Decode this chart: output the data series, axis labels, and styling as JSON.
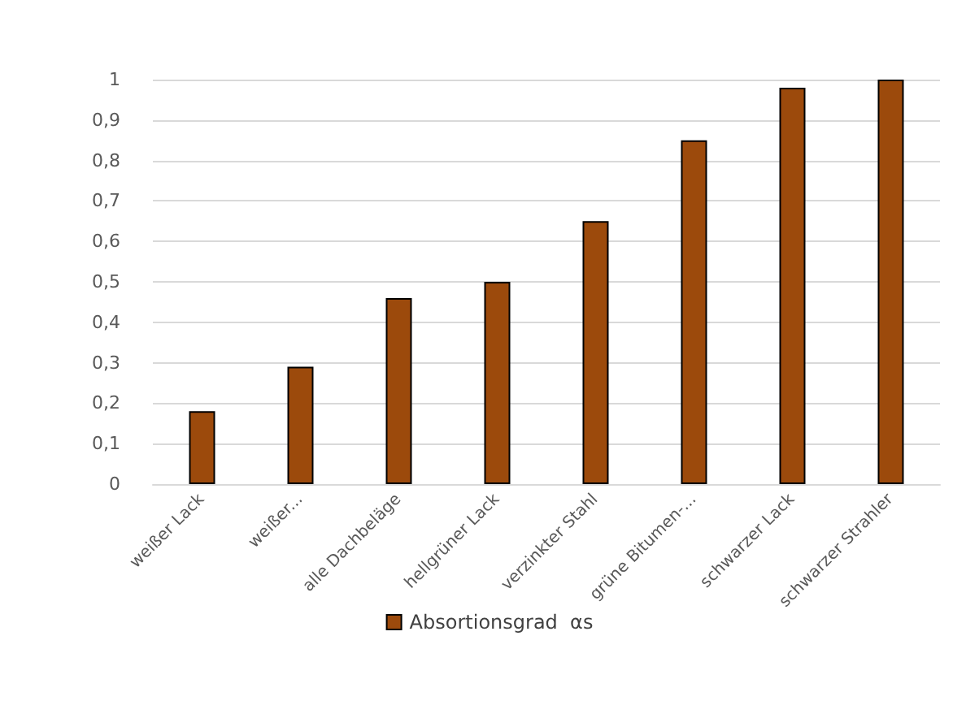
{
  "chart_data": {
    "type": "bar",
    "categories": [
      "weißer Lack",
      "weißer...",
      "alle Dachbeläge",
      "hellgrüner Lack",
      "verzinkter Stahl",
      "grüne Bitumen-...",
      "schwarzer Lack",
      "schwarzer Strahler"
    ],
    "series": [
      {
        "name": "Absortionsgrad  αs",
        "color": "#9c4a0c",
        "values": [
          0.18,
          0.29,
          0.46,
          0.5,
          0.65,
          0.85,
          0.98,
          1.0
        ]
      }
    ],
    "ylim": [
      0,
      1
    ],
    "yticks": [
      0,
      {
        "value": 0.1,
        "label": "0,1"
      },
      {
        "value": 0.2,
        "label": "0,2"
      },
      {
        "value": 0.3,
        "label": "0,3"
      },
      {
        "value": 0.4,
        "label": "0,4"
      },
      {
        "value": 0.5,
        "label": "0,5"
      },
      {
        "value": 0.6,
        "label": "0,6"
      },
      {
        "value": 0.7,
        "label": "0,7"
      },
      {
        "value": 0.8,
        "label": "0,8"
      },
      {
        "value": 0.9,
        "label": "0,9"
      },
      1
    ],
    "grid": true,
    "legend": "bottom"
  }
}
